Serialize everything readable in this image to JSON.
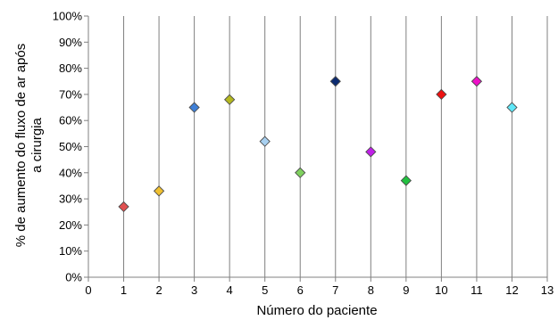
{
  "chart_data": {
    "type": "scatter",
    "title": "",
    "xlabel": "Número do paciente",
    "ylabel_lines": [
      "% de aumento do fluxo de ar após",
      "a cirurgia"
    ],
    "xlim": [
      0,
      13
    ],
    "ylim": [
      0,
      100
    ],
    "x_ticks": [
      "0",
      "1",
      "2",
      "3",
      "4",
      "5",
      "6",
      "7",
      "8",
      "9",
      "10",
      "11",
      "12",
      "13"
    ],
    "y_ticks": [
      "0%",
      "10%",
      "20%",
      "30%",
      "40%",
      "50%",
      "60%",
      "70%",
      "80%",
      "90%",
      "100%"
    ],
    "grid": "vertical",
    "marker": "diamond",
    "points": [
      {
        "x": 1,
        "y": 27,
        "color": "#e05050"
      },
      {
        "x": 2,
        "y": 33,
        "color": "#f0c030"
      },
      {
        "x": 3,
        "y": 65,
        "color": "#3f7fd6"
      },
      {
        "x": 4,
        "y": 68,
        "color": "#b4b820"
      },
      {
        "x": 5,
        "y": 52,
        "color": "#a8d0f0"
      },
      {
        "x": 6,
        "y": 40,
        "color": "#7fd05f"
      },
      {
        "x": 7,
        "y": 75,
        "color": "#0b2a70"
      },
      {
        "x": 8,
        "y": 48,
        "color": "#c020e8"
      },
      {
        "x": 9,
        "y": 37,
        "color": "#22c040"
      },
      {
        "x": 10,
        "y": 70,
        "color": "#ee1111"
      },
      {
        "x": 11,
        "y": 75,
        "color": "#ee10c8"
      },
      {
        "x": 12,
        "y": 65,
        "color": "#5fe8f8"
      }
    ]
  }
}
